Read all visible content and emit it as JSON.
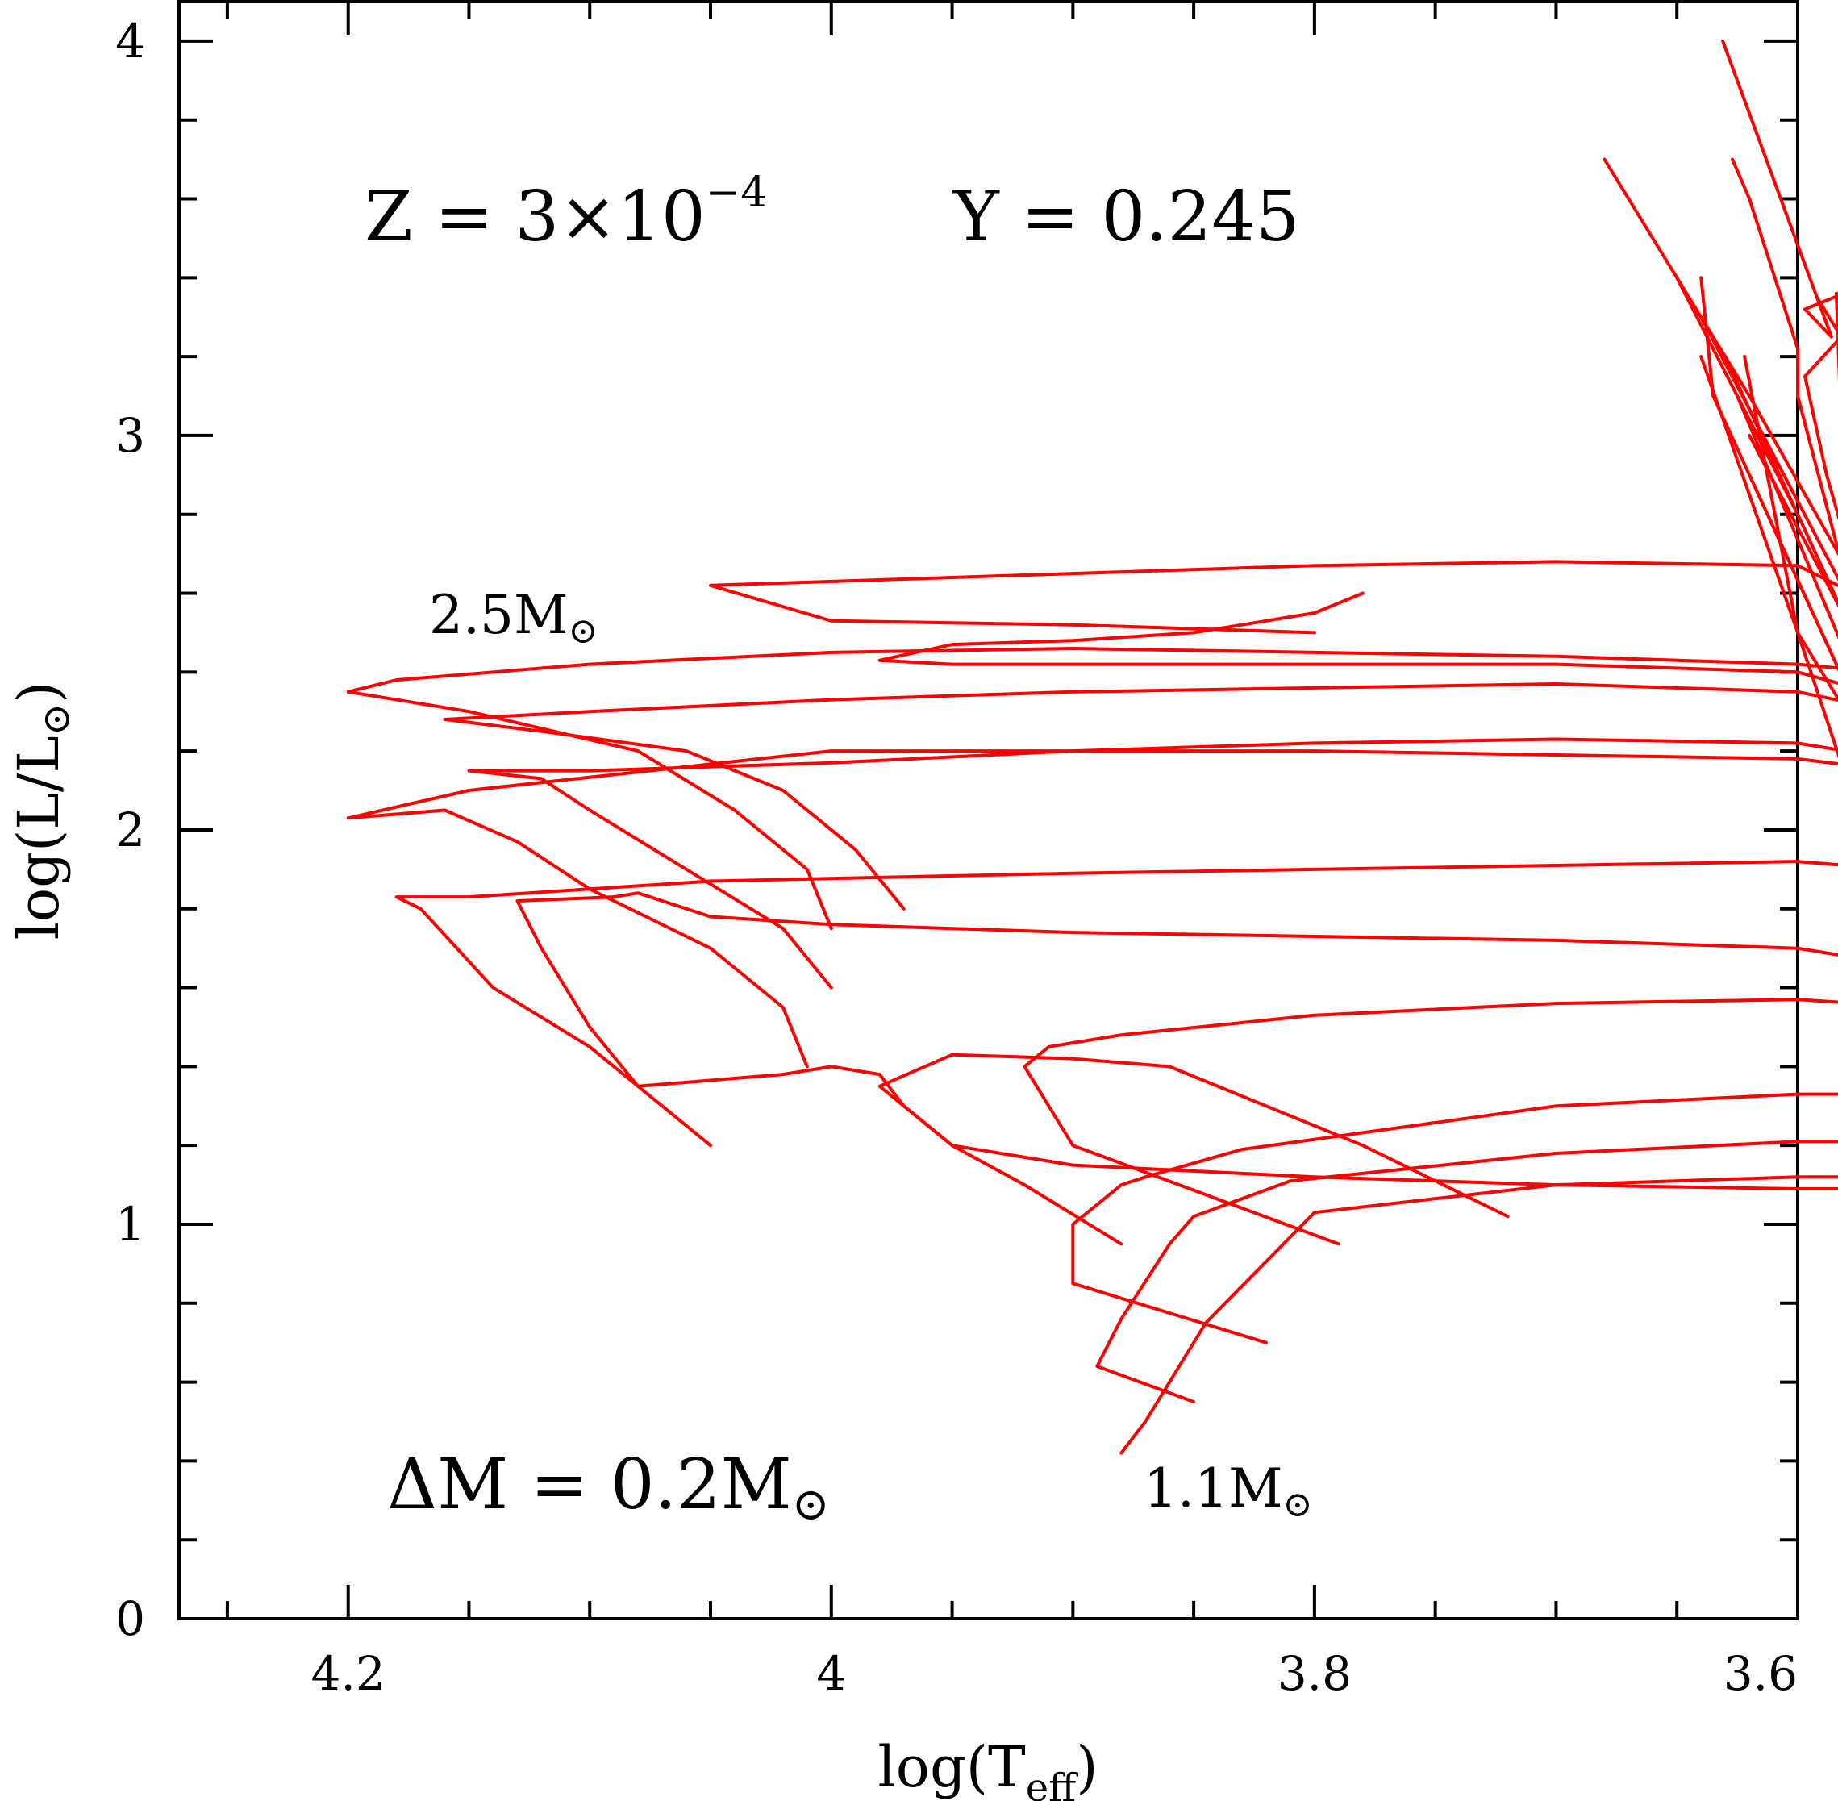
{
  "chart_data": {
    "type": "line",
    "xlabel": "log(T",
    "xlabel_sub": "eff",
    "xlabel_end": ")",
    "ylabel": "log(L/L",
    "ylabel_sub": "⊙",
    "ylabel_end": ")",
    "xlim": [
      4.27,
      3.6
    ],
    "ylim": [
      0,
      4.1
    ],
    "x_reversed": true,
    "grid": false,
    "x_ticks": [
      {
        "value": 4.2,
        "label": "4.2"
      },
      {
        "value": 4.0,
        "label": "4"
      },
      {
        "value": 3.8,
        "label": "3.8"
      },
      {
        "value": 3.6,
        "label": "3.6"
      }
    ],
    "y_ticks": [
      {
        "value": 0,
        "label": "0"
      },
      {
        "value": 1,
        "label": "1"
      },
      {
        "value": 2,
        "label": "2"
      },
      {
        "value": 3,
        "label": "3"
      },
      {
        "value": 4,
        "label": "4"
      }
    ],
    "annotations": {
      "composition": "Z  =  3×10",
      "composition_exp": "−4",
      "helium": "Y  =  0.245",
      "delta_m": "ΔM  =  0.2M",
      "delta_m_sym": "⊙",
      "top_mass": "2.5M",
      "top_mass_sym": "⊙",
      "bottom_mass": "1.1M",
      "bottom_mass_sym": "⊙"
    },
    "series_color": "#ff0000",
    "series": [
      {
        "x": [
          3.88,
          3.87,
          3.86,
          3.845,
          3.8,
          3.7,
          3.6,
          3.55,
          3.52,
          3.505,
          3.5,
          3.51,
          3.53,
          3.56,
          3.58,
          3.584,
          3.581,
          3.597,
          3.586,
          3.631
        ],
        "y": [
          0.42,
          0.5,
          0.6,
          0.75,
          1.03,
          1.1,
          1.12,
          1.12,
          1.11,
          1.1,
          1.11,
          1.2,
          1.5,
          2.1,
          2.7,
          3.36,
          3.36,
          3.32,
          3.25,
          4.0
        ]
      },
      {
        "x": [
          3.85,
          3.89,
          3.88,
          3.86,
          3.85,
          3.81,
          3.7,
          3.6,
          3.54,
          3.52,
          3.509,
          3.51,
          3.53,
          3.56,
          3.588,
          3.597,
          3.582,
          3.592
        ],
        "y": [
          0.55,
          0.64,
          0.76,
          0.95,
          1.02,
          1.11,
          1.18,
          1.21,
          1.21,
          1.2,
          1.2,
          1.26,
          1.6,
          2.3,
          2.9,
          3.15,
          3.25,
          3.35
        ]
      },
      {
        "x": [
          3.82,
          3.9,
          3.9,
          3.88,
          3.87,
          3.83,
          3.7,
          3.6,
          3.54,
          3.52,
          3.51,
          3.515,
          3.54,
          3.57,
          3.6,
          3.6,
          3.62,
          3.627
        ],
        "y": [
          0.7,
          0.85,
          1.0,
          1.1,
          1.12,
          1.19,
          1.3,
          1.33,
          1.33,
          1.32,
          1.3,
          1.4,
          1.8,
          2.4,
          3.1,
          3.22,
          3.6,
          3.7
        ]
      },
      {
        "x": [
          3.79,
          3.9,
          3.92,
          3.91,
          3.88,
          3.8,
          3.7,
          3.6,
          3.55,
          3.525,
          3.52,
          3.52,
          3.56,
          3.62,
          3.635,
          3.64
        ],
        "y": [
          0.95,
          1.2,
          1.4,
          1.45,
          1.48,
          1.53,
          1.56,
          1.57,
          1.55,
          1.52,
          1.5,
          1.6,
          2.1,
          2.9,
          3.1,
          3.4
        ]
      },
      {
        "x": [
          3.72,
          3.78,
          3.86,
          3.9,
          3.95,
          3.98,
          3.96,
          3.95,
          3.9,
          3.8,
          3.7,
          3.6,
          3.55,
          3.53,
          3.52,
          3.524,
          3.54,
          3.6,
          3.622
        ],
        "y": [
          1.02,
          1.2,
          1.4,
          1.42,
          1.43,
          1.35,
          1.25,
          1.2,
          1.15,
          1.12,
          1.1,
          1.09,
          1.09,
          1.09,
          1.09,
          1.1,
          1.4,
          2.5,
          3.2
        ]
      },
      {
        "x": [
          3.88,
          3.92,
          3.95,
          3.96,
          3.97,
          3.98,
          4.0,
          4.02,
          4.08,
          4.1,
          4.12,
          4.13,
          4.09,
          4.08,
          4.05,
          4.0,
          3.9,
          3.8,
          3.7,
          3.6,
          3.56,
          3.54,
          3.53,
          3.527,
          3.54,
          3.6,
          3.64
        ],
        "y": [
          0.95,
          1.1,
          1.2,
          1.25,
          1.3,
          1.38,
          1.4,
          1.38,
          1.35,
          1.5,
          1.7,
          1.82,
          1.83,
          1.84,
          1.78,
          1.76,
          1.74,
          1.73,
          1.72,
          1.7,
          1.66,
          1.62,
          1.6,
          1.62,
          1.9,
          2.5,
          3.2
        ]
      },
      {
        "x": [
          4.05,
          4.07,
          4.1,
          4.14,
          4.17,
          4.18,
          4.15,
          4.1,
          4.05,
          3.9,
          3.8,
          3.7,
          3.6,
          3.56,
          3.54,
          3.535,
          3.56,
          3.62
        ],
        "y": [
          1.2,
          1.3,
          1.45,
          1.6,
          1.8,
          1.83,
          1.83,
          1.85,
          1.87,
          1.89,
          1.9,
          1.91,
          1.92,
          1.9,
          1.87,
          1.85,
          2.1,
          2.9
        ]
      },
      {
        "x": [
          4.01,
          4.02,
          4.05,
          4.1,
          4.13,
          4.16,
          4.2,
          4.15,
          4.0,
          3.9,
          3.8,
          3.7,
          3.6,
          3.56,
          3.54,
          3.535,
          3.56,
          3.62
        ],
        "y": [
          1.4,
          1.55,
          1.7,
          1.85,
          1.97,
          2.05,
          2.03,
          2.1,
          2.2,
          2.2,
          2.2,
          2.19,
          2.18,
          2.15,
          2.1,
          2.0,
          2.3,
          3.0
        ]
      },
      {
        "x": [
          4.0,
          4.02,
          4.06,
          4.1,
          4.12,
          4.15,
          4.14,
          4.1,
          4.0,
          3.9,
          3.8,
          3.7,
          3.6,
          3.56,
          3.55,
          3.545,
          3.57,
          3.625
        ],
        "y": [
          1.6,
          1.75,
          1.9,
          2.05,
          2.13,
          2.15,
          2.15,
          2.15,
          2.17,
          2.2,
          2.22,
          2.23,
          2.22,
          2.18,
          2.1,
          2.0,
          2.3,
          3.1
        ]
      },
      {
        "x": [
          3.97,
          3.99,
          4.02,
          4.06,
          4.12,
          4.16,
          4.1,
          4.0,
          3.9,
          3.8,
          3.7,
          3.6,
          3.56,
          3.55,
          3.545,
          3.57,
          3.63
        ],
        "y": [
          1.8,
          1.95,
          2.1,
          2.2,
          2.25,
          2.28,
          2.3,
          2.33,
          2.35,
          2.36,
          2.37,
          2.35,
          2.3,
          2.2,
          2.1,
          2.4,
          3.2
        ]
      },
      {
        "x": [
          4.0,
          4.01,
          4.04,
          4.08,
          4.15,
          4.2,
          4.18,
          4.1,
          4.0,
          3.9,
          3.8,
          3.7,
          3.6,
          3.565,
          3.55,
          3.55,
          3.58,
          3.64
        ],
        "y": [
          1.75,
          1.9,
          2.05,
          2.2,
          2.3,
          2.35,
          2.38,
          2.42,
          2.45,
          2.46,
          2.45,
          2.44,
          2.42,
          2.4,
          2.35,
          2.3,
          2.6,
          3.3
        ]
      },
      {
        "x": [
          3.78,
          3.8,
          3.83,
          3.85,
          3.9,
          3.95,
          3.98,
          3.95,
          3.9,
          3.8,
          3.7,
          3.6,
          3.57,
          3.56,
          3.555,
          3.6,
          3.65
        ],
        "y": [
          2.6,
          2.55,
          2.52,
          2.5,
          2.48,
          2.47,
          2.43,
          2.42,
          2.42,
          2.42,
          2.42,
          2.4,
          2.35,
          2.25,
          2.2,
          2.8,
          3.4
        ]
      },
      {
        "x": [
          3.8,
          3.9,
          4.0,
          4.05,
          3.9,
          3.8,
          3.7,
          3.6,
          3.57,
          3.56,
          3.56,
          3.62,
          3.68
        ],
        "y": [
          2.5,
          2.52,
          2.53,
          2.62,
          2.65,
          2.67,
          2.68,
          2.67,
          2.58,
          2.5,
          2.45,
          3.1,
          3.7
        ]
      }
    ]
  }
}
